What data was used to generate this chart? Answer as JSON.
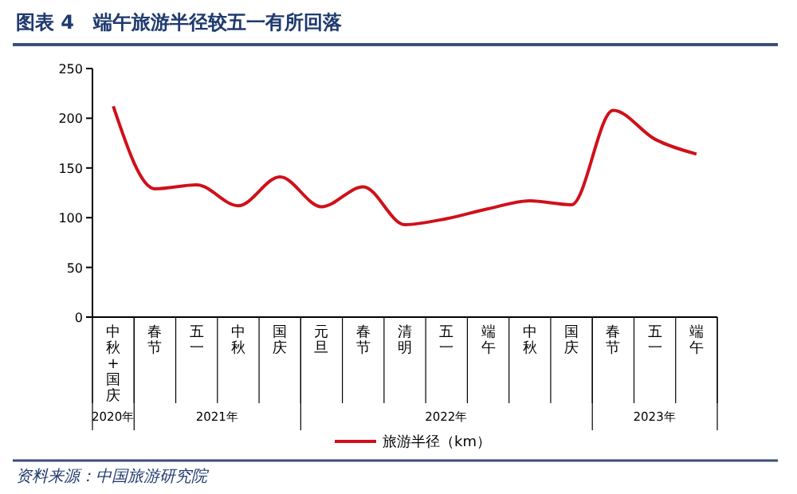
{
  "chart_data": {
    "type": "line",
    "title": "图表 4　端午旅游半径较五一有所回落",
    "categories": [
      "中秋+国庆",
      "春节",
      "五一",
      "中秋",
      "国庆",
      "元旦",
      "春节",
      "清明",
      "五一",
      "端午",
      "中秋",
      "国庆",
      "春节",
      "五一",
      "端午"
    ],
    "series": [
      {
        "name": "旅游半径（km）",
        "color": "#d0101a",
        "values": [
          212,
          129,
          133,
          112,
          141,
          111,
          131,
          93,
          99,
          109,
          117,
          113,
          208,
          179,
          164
        ]
      }
    ],
    "ylim": [
      0,
      250
    ],
    "yticks": [
      0,
      50,
      100,
      150,
      200,
      250
    ],
    "grid": false,
    "legend": "bottom",
    "marker": "none",
    "line_style": "solid",
    "annotations": [
      "2020年",
      "2021年",
      "2022年",
      "2023年",
      "资料来源：中国旅游研究院"
    ]
  }
}
